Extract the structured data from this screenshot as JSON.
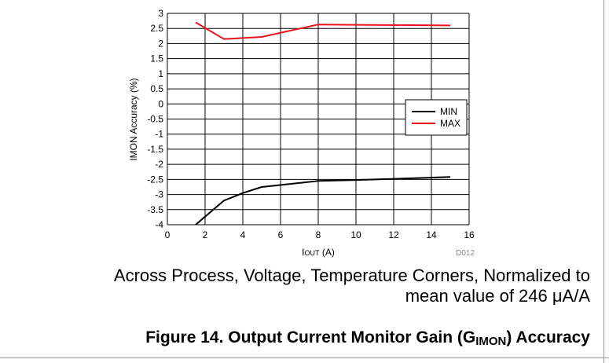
{
  "chart_data": {
    "type": "line",
    "title": "",
    "xlabel": "I",
    "xlabel_sub": "OUT",
    "xlabel_unit": " (A)",
    "ylabel": "IMON Accuracy (%)",
    "xlim": [
      0,
      16
    ],
    "ylim": [
      -4,
      3
    ],
    "x_ticks": [
      "0",
      "2",
      "4",
      "6",
      "8",
      "10",
      "12",
      "14",
      "16"
    ],
    "y_ticks": [
      "3",
      "2.5",
      "2",
      "1.5",
      "1",
      "0.5",
      "0",
      "-0.5",
      "-1",
      "-1.5",
      "-2",
      "-2.5",
      "-3",
      "-3.5",
      "-4"
    ],
    "grid": true,
    "legend_position": "right",
    "series": [
      {
        "name": "MIN",
        "color": "#000000",
        "x": [
          1.5,
          3,
          4,
          5,
          8,
          10,
          15
        ],
        "y": [
          -4.0,
          -3.2,
          -2.95,
          -2.75,
          -2.55,
          -2.52,
          -2.42
        ]
      },
      {
        "name": "MAX",
        "color": "#e8141b",
        "x": [
          1.5,
          3,
          5,
          8,
          15
        ],
        "y": [
          2.7,
          2.15,
          2.22,
          2.63,
          2.6
        ]
      }
    ],
    "annotation": "D012"
  },
  "caption": {
    "line1": "Across Process, Voltage, Temperature Corners, Normalized to",
    "line2": "mean value of 246 μA/A"
  },
  "figure": {
    "title_main": "Figure 14. Output Current Monitor Gain (G",
    "title_sub": "IMON",
    "title_end": ") Accuracy"
  }
}
